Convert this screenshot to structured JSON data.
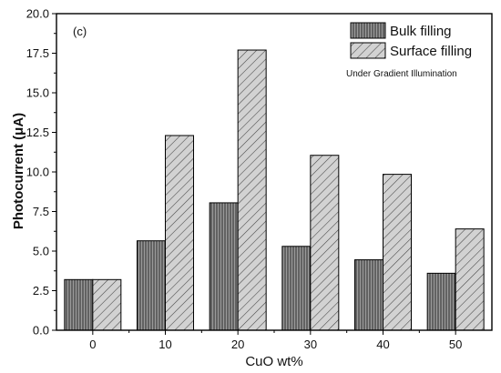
{
  "chart_data": {
    "type": "bar",
    "panel_label": "(c)",
    "categories": [
      "0",
      "10",
      "20",
      "30",
      "40",
      "50"
    ],
    "series": [
      {
        "name": "Bulk filling",
        "values": [
          3.2,
          5.65,
          8.05,
          5.3,
          4.45,
          3.6
        ],
        "pattern": "vertical-stripes"
      },
      {
        "name": "Surface filling",
        "values": [
          3.2,
          12.3,
          17.7,
          11.05,
          9.85,
          6.4
        ],
        "pattern": "diagonal-stripes"
      }
    ],
    "xlabel": "CuO wt%",
    "ylabel": "Photocurrent (μA)",
    "ylim": [
      0,
      20
    ],
    "yticks": [
      "0.0",
      "2.5",
      "5.0",
      "7.5",
      "10.0",
      "12.5",
      "15.0",
      "17.5",
      "20.0"
    ],
    "annotation": "Under Gradient Illumination",
    "legend_position": "top-right",
    "grid": false
  }
}
